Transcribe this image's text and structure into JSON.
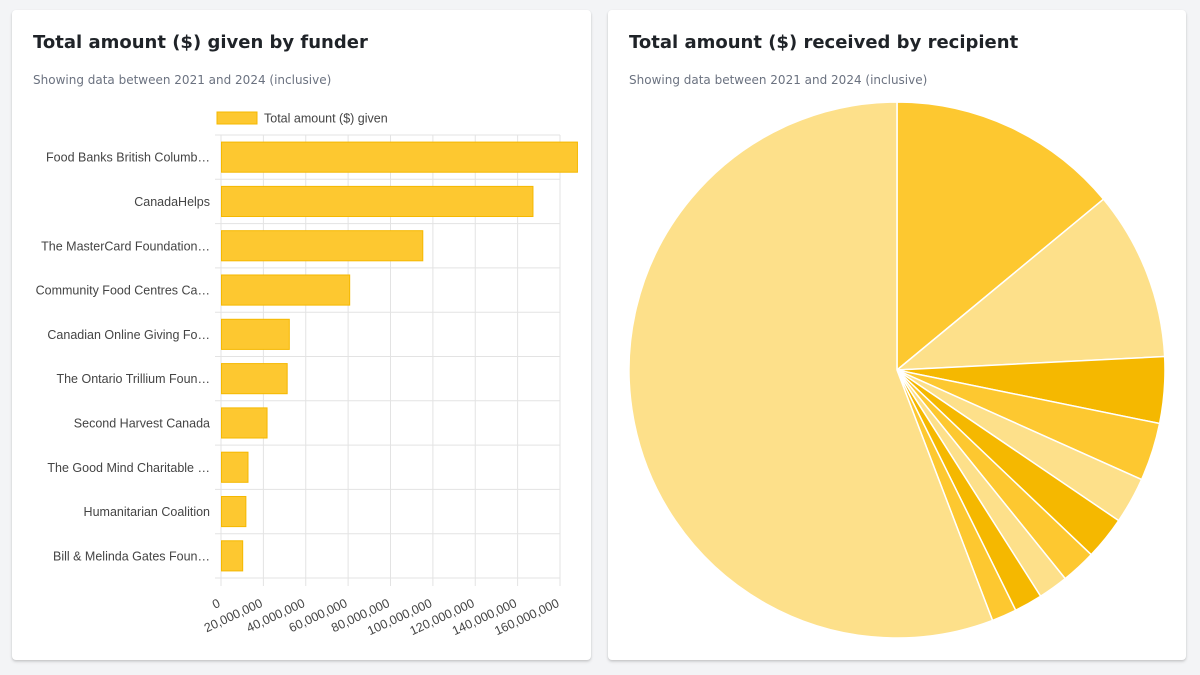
{
  "left_card": {
    "title": "Total amount ($) given by funder",
    "subtitle": "Showing data between 2021 and 2024 (inclusive)"
  },
  "right_card": {
    "title": "Total amount ($) received by recipient",
    "subtitle": "Showing data between 2021 and 2024 (inclusive)"
  },
  "colors": {
    "bar_fill": "#fdc830",
    "bar_stroke": "#f5b800",
    "grid": "#e3e3e3",
    "pie_palette": [
      "#fdc830",
      "#fde08a",
      "#f5b800"
    ]
  },
  "chart_data": [
    {
      "type": "bar",
      "orientation": "horizontal",
      "categories": [
        "Food Banks British Columb…",
        "CanadaHelps",
        "The MasterCard Foundation…",
        "Community Food Centres Ca…",
        "Canadian Online Giving Fo…",
        "The Ontario Trillium Foun…",
        "Second Harvest Canada",
        "The Good Mind Charitable …",
        "Humanitarian Coalition",
        "Bill & Melinda Gates Foun…"
      ],
      "series": [
        {
          "name": "Total amount ($) given",
          "values": [
            168000000,
            147000000,
            95000000,
            60500000,
            32000000,
            31000000,
            21500000,
            12500000,
            11500000,
            10000000
          ]
        }
      ],
      "xlim": [
        0,
        160000000
      ],
      "xticks": [
        "0",
        "20,000,000",
        "40,000,000",
        "60,000,000",
        "80,000,000",
        "100,000,000",
        "120,000,000",
        "140,000,000",
        "160,000,000"
      ],
      "grid": true,
      "legend": "top"
    },
    {
      "type": "pie",
      "slices": [
        14.0,
        10.2,
        4.0,
        3.5,
        2.8,
        2.6,
        2.1,
        1.8,
        1.7,
        1.5,
        55.8
      ],
      "colors": [
        "#fdc830",
        "#fde08a",
        "#f5b800",
        "#fdc830",
        "#fde08a",
        "#f5b800",
        "#fdc830",
        "#fde08a",
        "#f5b800",
        "#fdc830",
        "#fde08a"
      ],
      "start": "top",
      "direction": "clockwise"
    }
  ]
}
